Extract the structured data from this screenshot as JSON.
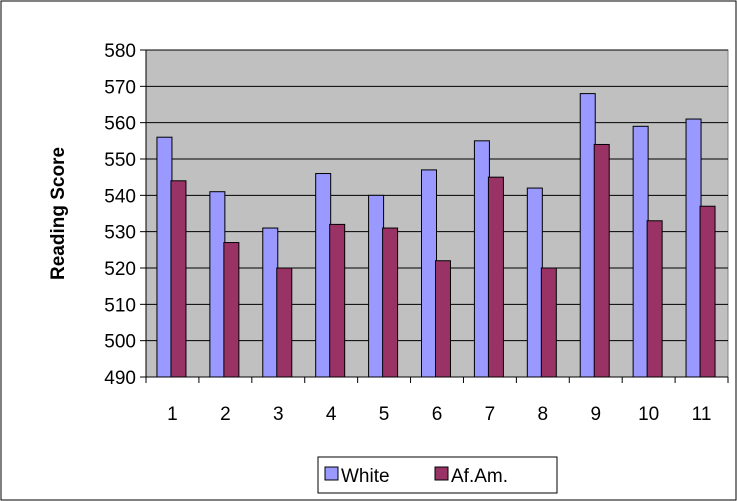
{
  "chart_data": {
    "type": "bar",
    "title": "",
    "xlabel": "",
    "ylabel": "Reading Score",
    "ylim": [
      490,
      580
    ],
    "ytick_step": 10,
    "grid": true,
    "legend_position": "bottom",
    "categories": [
      "1",
      "2",
      "3",
      "4",
      "5",
      "6",
      "7",
      "8",
      "9",
      "10",
      "11"
    ],
    "series": [
      {
        "name": "White",
        "color": "#9999ff",
        "values": [
          556,
          541,
          531,
          546,
          540,
          547,
          555,
          542,
          568,
          559,
          561
        ]
      },
      {
        "name": "Af.Am.",
        "color": "#993366",
        "values": [
          544,
          527,
          520,
          532,
          531,
          522,
          545,
          520,
          554,
          533,
          537
        ]
      }
    ],
    "plot_background": "#c0c0c0"
  }
}
